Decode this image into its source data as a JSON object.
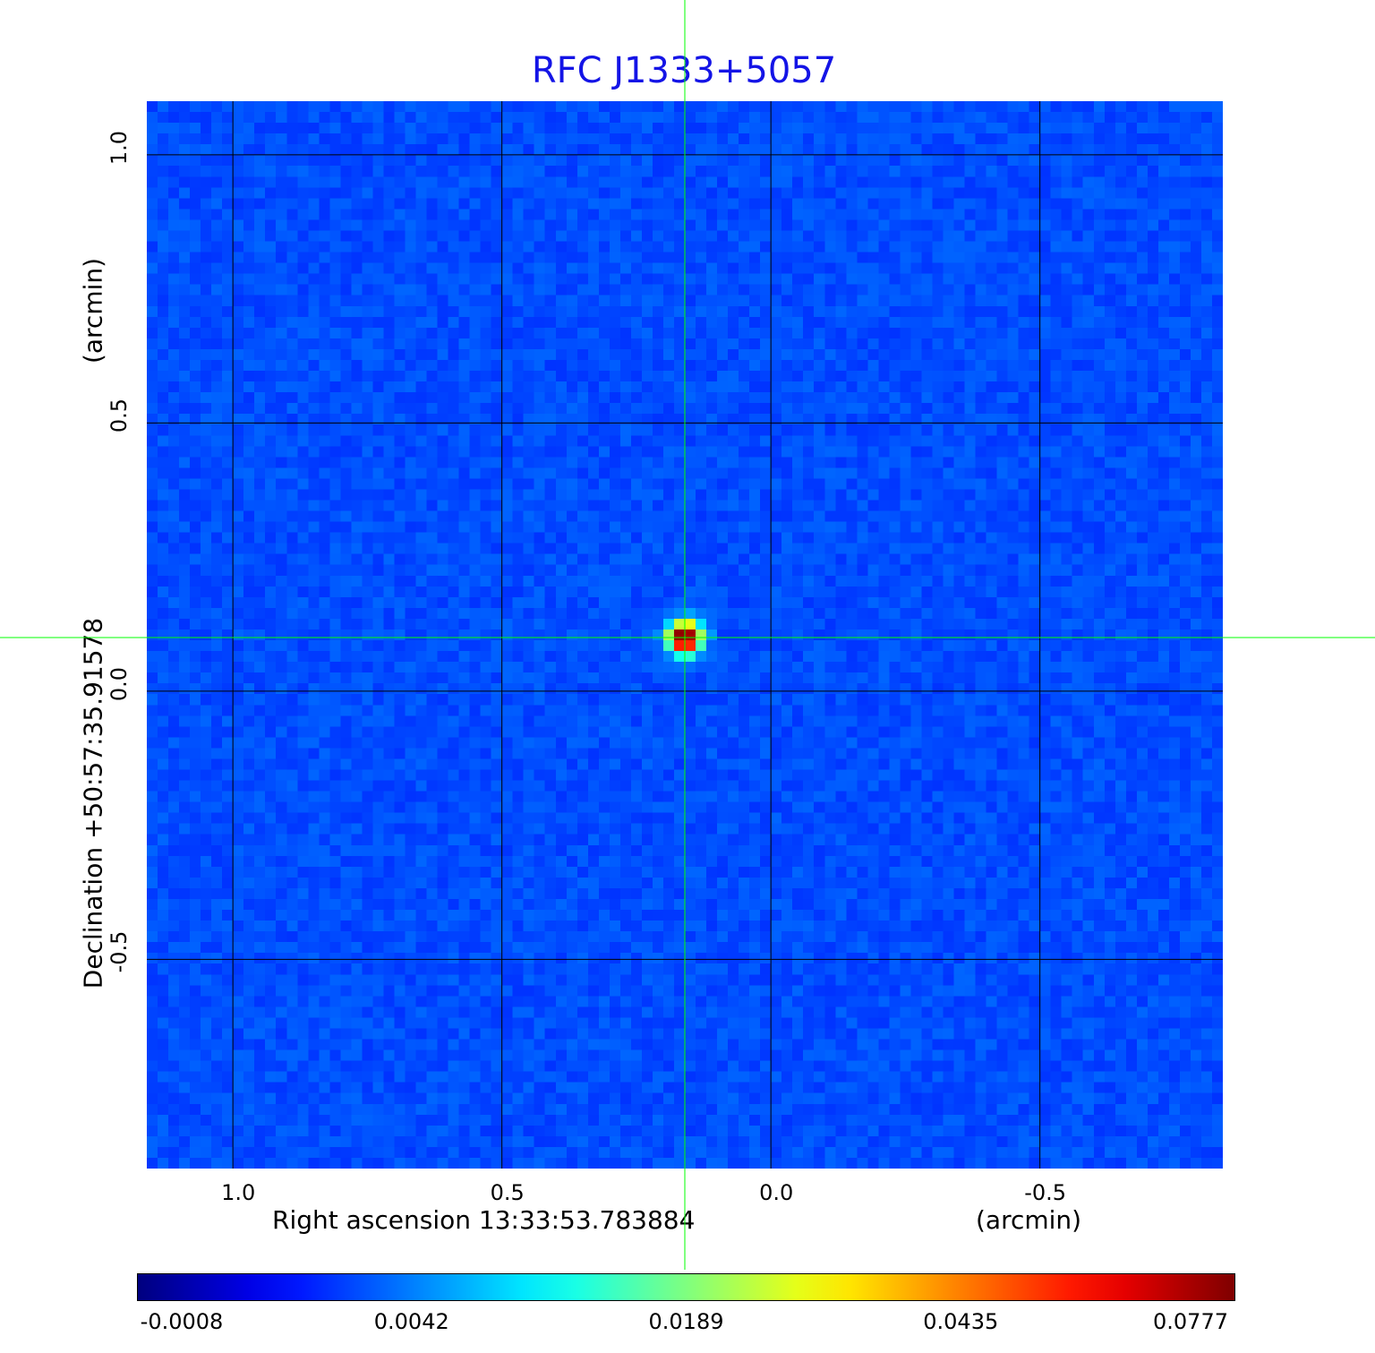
{
  "chart_data": {
    "type": "heatmap",
    "title": "RFC J1333+5057",
    "xlabel": "Right ascension  13:33:53.783884",
    "xunit": "(arcmin)",
    "ylabel": "Declination  +50:57:35.91578",
    "yunit": "(arcmin)",
    "xlim": [
      1.16,
      -0.84
    ],
    "ylim": [
      -0.89,
      1.1
    ],
    "xticks": [
      1.0,
      0.5,
      0.0,
      -0.5
    ],
    "xtick_labels": [
      "1.0",
      "0.5",
      "0.0",
      "-0.5"
    ],
    "yticks": [
      1.0,
      0.5,
      0.0,
      -0.5
    ],
    "ytick_labels": [
      "1.0",
      "0.5",
      "0.0",
      "-0.5"
    ],
    "grid": true,
    "colormap": "jet",
    "colorbar": {
      "placement": "bottom",
      "tick_labels": [
        "-0.0008",
        "0.0042",
        "0.0189",
        "0.0435",
        "0.0777"
      ]
    },
    "background_level": 0.0,
    "peak": {
      "x": 0.16,
      "y": 0.1,
      "value": 0.0777
    },
    "crosshair": {
      "x": 0.16,
      "y": 0.1
    }
  },
  "colors": {
    "title": "#1414e6",
    "crosshair": "#00ff00",
    "grid": "#000000"
  }
}
